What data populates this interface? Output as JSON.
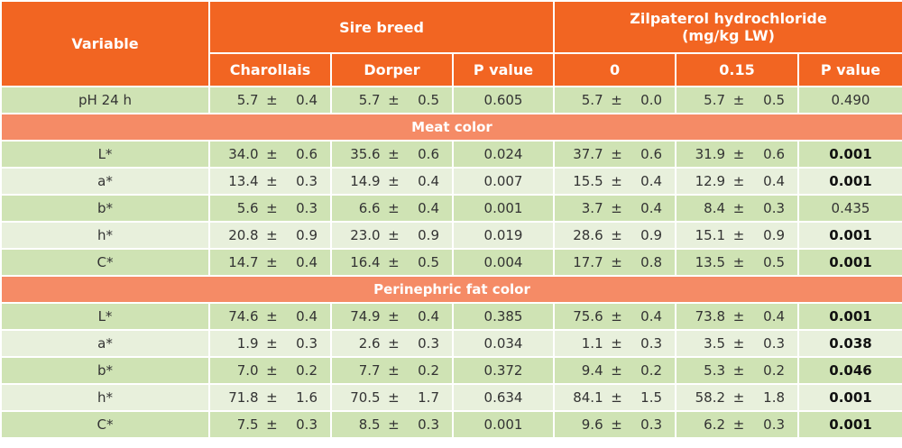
{
  "header": {
    "variable": "Variable",
    "sire_breed": "Sire breed",
    "zilpaterol": "Zilpaterol hydrochloride\n(mg/kg LW)",
    "zilpaterol_line1": "Zilpaterol hydrochloride",
    "zilpaterol_line2": "(mg/kg LW)",
    "charollais": "Charollais",
    "dorper": "Dorper",
    "p_value": "P value",
    "dose_0": "0",
    "dose_015": "0.15"
  },
  "pm": "±",
  "sections": {
    "meat_color": "Meat color",
    "fat_color": "Perinephric fat color"
  },
  "rows": {
    "ph": {
      "var": "pH 24 h",
      "c_m": "5.7",
      "c_s": "0.4",
      "d_m": "5.7",
      "d_s": "0.5",
      "p1": "0.605",
      "z0_m": "5.7",
      "z0_s": "0.0",
      "z1_m": "5.7",
      "z1_s": "0.5",
      "p2": "0.490"
    },
    "meat": [
      {
        "var": "L*",
        "c_m": "34.0",
        "c_s": "0.6",
        "d_m": "35.6",
        "d_s": "0.6",
        "p1": "0.024",
        "z0_m": "37.7",
        "z0_s": "0.6",
        "z1_m": "31.9",
        "z1_s": "0.6",
        "p2": "0.001"
      },
      {
        "var": "a*",
        "c_m": "13.4",
        "c_s": "0.3",
        "d_m": "14.9",
        "d_s": "0.4",
        "p1": "0.007",
        "z0_m": "15.5",
        "z0_s": "0.4",
        "z1_m": "12.9",
        "z1_s": "0.4",
        "p2": "0.001"
      },
      {
        "var": "b*",
        "c_m": "5.6",
        "c_s": "0.3",
        "d_m": "6.6",
        "d_s": "0.4",
        "p1": "0.001",
        "z0_m": "3.7",
        "z0_s": "0.4",
        "z1_m": "8.4",
        "z1_s": "0.3",
        "p2": "0.435"
      },
      {
        "var": "h*",
        "c_m": "20.8",
        "c_s": "0.9",
        "d_m": "23.0",
        "d_s": "0.9",
        "p1": "0.019",
        "z0_m": "28.6",
        "z0_s": "0.9",
        "z1_m": "15.1",
        "z1_s": "0.9",
        "p2": "0.001"
      },
      {
        "var": "C*",
        "c_m": "14.7",
        "c_s": "0.4",
        "d_m": "16.4",
        "d_s": "0.5",
        "p1": "0.004",
        "z0_m": "17.7",
        "z0_s": "0.8",
        "z1_m": "13.5",
        "z1_s": "0.5",
        "p2": "0.001"
      }
    ],
    "fat": [
      {
        "var": "L*",
        "c_m": "74.6",
        "c_s": "0.4",
        "d_m": "74.9",
        "d_s": "0.4",
        "p1": "0.385",
        "z0_m": "75.6",
        "z0_s": "0.4",
        "z1_m": "73.8",
        "z1_s": "0.4",
        "p2": "0.001"
      },
      {
        "var": "a*",
        "c_m": "1.9",
        "c_s": "0.3",
        "d_m": "2.6",
        "d_s": "0.3",
        "p1": "0.034",
        "z0_m": "1.1",
        "z0_s": "0.3",
        "z1_m": "3.5",
        "z1_s": "0.3",
        "p2": "0.038"
      },
      {
        "var": "b*",
        "c_m": "7.0",
        "c_s": "0.2",
        "d_m": "7.7",
        "d_s": "0.2",
        "p1": "0.372",
        "z0_m": "9.4",
        "z0_s": "0.2",
        "z1_m": "5.3",
        "z1_s": "0.2",
        "p2": "0.046"
      },
      {
        "var": "h*",
        "c_m": "71.8",
        "c_s": "1.6",
        "d_m": "70.5",
        "d_s": "1.7",
        "p1": "0.634",
        "z0_m": "84.1",
        "z0_s": "1.5",
        "z1_m": "58.2",
        "z1_s": "1.8",
        "p2": "0.001"
      },
      {
        "var": "C*",
        "c_m": "7.5",
        "c_s": "0.3",
        "d_m": "8.5",
        "d_s": "0.3",
        "p1": "0.001",
        "z0_m": "9.6",
        "z0_s": "0.3",
        "z1_m": "6.2",
        "z1_s": "0.3",
        "p2": "0.001"
      }
    ]
  },
  "bold_p2": [
    "0.001",
    "0.038",
    "0.046"
  ],
  "colors": {
    "header": "#f26522",
    "section": "#f58b66",
    "row_dark": "#cfe3b4",
    "row_light": "#e8f0dc"
  }
}
